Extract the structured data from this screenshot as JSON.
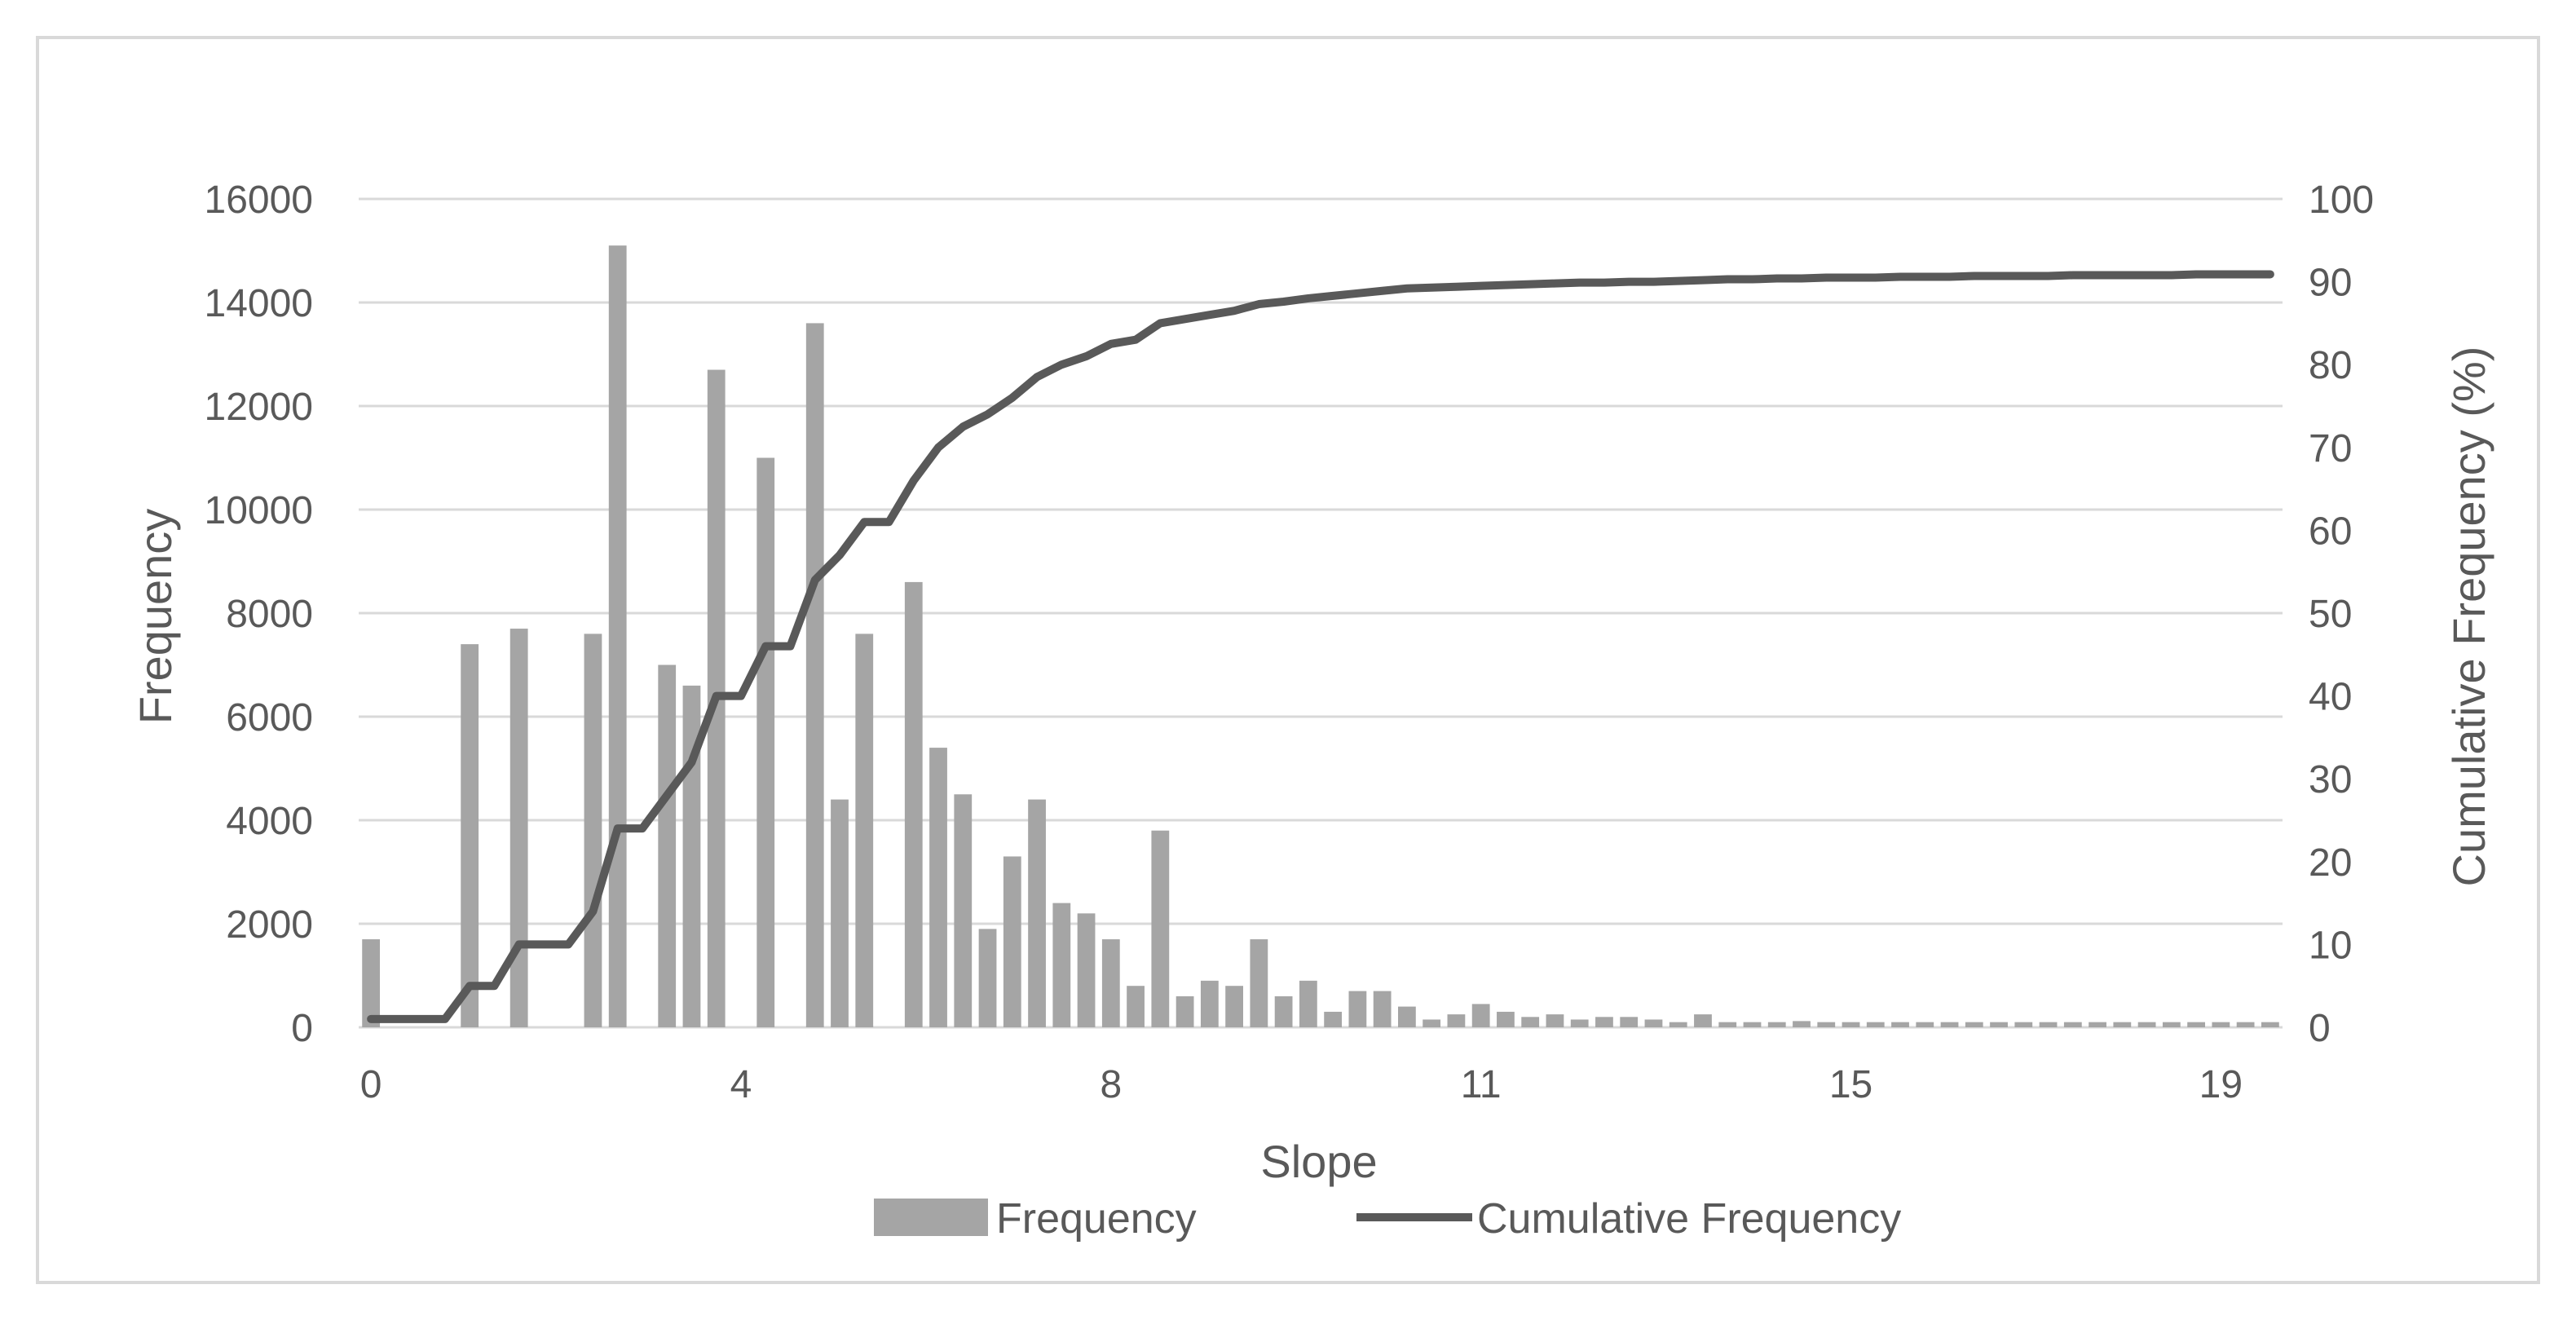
{
  "chart_data": {
    "type": "bar",
    "title": "",
    "xlabel": "Slope",
    "ylabel": "Frequency",
    "y2label": "Cumulative Frequency (%)",
    "ylim": [
      0,
      16000
    ],
    "y2lim": [
      0,
      100
    ],
    "yticks": [
      "0",
      "2000",
      "4000",
      "6000",
      "8000",
      "10000",
      "12000",
      "14000",
      "16000"
    ],
    "y2ticks": [
      "0",
      "10",
      "20",
      "30",
      "40",
      "50",
      "60",
      "70",
      "80",
      "90",
      "100"
    ],
    "xtick_labels": [
      "0",
      "4",
      "8",
      "11",
      "15",
      "19"
    ],
    "xtick_category_index": [
      0,
      15,
      30,
      45,
      60,
      75
    ],
    "grid": true,
    "legend_position": "bottom",
    "colors": {
      "bar": "#a5a5a5",
      "line": "#595959",
      "grid": "#d9d9d9",
      "text": "#595959"
    },
    "series": [
      {
        "name": "Frequency",
        "type": "bar",
        "axis": "left",
        "values": [
          1700,
          0,
          0,
          0,
          7400,
          0,
          7700,
          0,
          0,
          7600,
          15100,
          0,
          7000,
          6600,
          12700,
          0,
          11000,
          0,
          13600,
          4400,
          7600,
          0,
          8600,
          5400,
          4500,
          1900,
          3300,
          4400,
          2400,
          2200,
          1700,
          800,
          3800,
          600,
          900,
          800,
          1700,
          600,
          900,
          300,
          700,
          700,
          400,
          150,
          250,
          450,
          300,
          200,
          250,
          150,
          200,
          200,
          150,
          100,
          250,
          100,
          100,
          100,
          120,
          100,
          100,
          100,
          100,
          100,
          100,
          100,
          100,
          100,
          100,
          100,
          100,
          100,
          100,
          100,
          100,
          100,
          100,
          100
        ]
      },
      {
        "name": "Cumulative Frequency",
        "type": "line",
        "axis": "right",
        "values": [
          1,
          1,
          1,
          1,
          5,
          5,
          10,
          10,
          10,
          14,
          24,
          24,
          28,
          32,
          40,
          40,
          46,
          46,
          54,
          57,
          61,
          61,
          66,
          70,
          72.5,
          74,
          76,
          78.5,
          80,
          81,
          82.5,
          83,
          85,
          85.5,
          86,
          86.5,
          87.3,
          87.6,
          88,
          88.3,
          88.6,
          88.9,
          89.2,
          89.3,
          89.4,
          89.5,
          89.6,
          89.7,
          89.8,
          89.9,
          89.9,
          90,
          90,
          90.1,
          90.2,
          90.3,
          90.3,
          90.4,
          90.4,
          90.5,
          90.5,
          90.5,
          90.6,
          90.6,
          90.6,
          90.7,
          90.7,
          90.7,
          90.7,
          90.8,
          90.8,
          90.8,
          90.8,
          90.8,
          90.9,
          90.9,
          90.9,
          90.9
        ]
      }
    ]
  }
}
